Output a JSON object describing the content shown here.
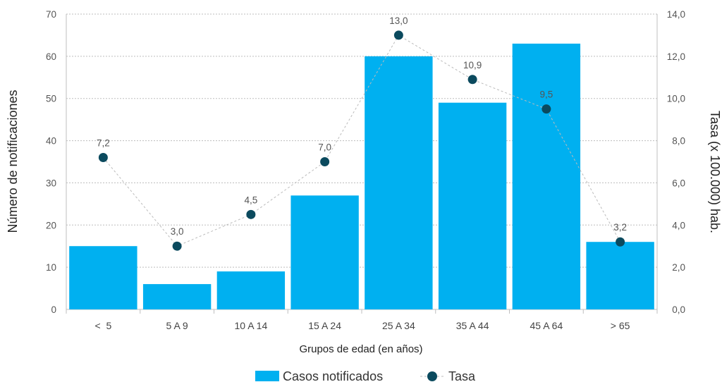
{
  "chart_data": {
    "type": "bar",
    "categories": [
      "<  5",
      "5 A 9",
      "10 A 14",
      "15 A 24",
      "25 A 34",
      "35 A 44",
      "45 A 64",
      "> 65"
    ],
    "series": [
      {
        "name": "Casos notificados",
        "type": "bar",
        "axis": "left",
        "color": "#00B0F0",
        "values": [
          15,
          6,
          9,
          27,
          60,
          49,
          63,
          16
        ]
      },
      {
        "name": "Tasa",
        "type": "line",
        "axis": "right",
        "color": "#0B4A5E",
        "line_color": "#BBBBBB",
        "line_style": "dashed",
        "values": [
          7.2,
          3.0,
          4.5,
          7.0,
          13.0,
          10.9,
          9.5,
          3.2
        ],
        "labels": [
          "7,2",
          "3,0",
          "4,5",
          "7,0",
          "13,0",
          "10,9",
          "9,5",
          "3,2"
        ]
      }
    ],
    "xlabel": "Grupos de edad (en años)",
    "ylabel": "Número de notificaciones",
    "y2label": "Tasa (x 100.000) hab.",
    "ylim": [
      0,
      70
    ],
    "y2lim": [
      0,
      14
    ],
    "yticks": [
      "0",
      "10",
      "20",
      "30",
      "40",
      "50",
      "60",
      "70"
    ],
    "y2ticks": [
      "0,0",
      "2,0",
      "4,0",
      "6,0",
      "8,0",
      "10,0",
      "12,0",
      "14,0"
    ],
    "grid": true,
    "legend_position": "bottom"
  }
}
